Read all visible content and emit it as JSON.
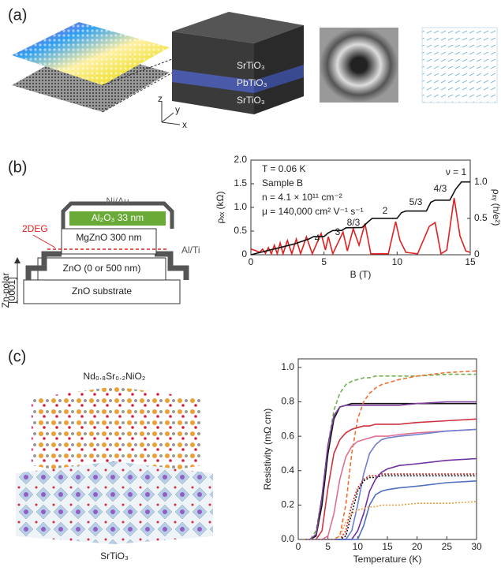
{
  "panels": {
    "a": {
      "label": "(a)",
      "layers": [
        "SrTiO₃",
        "PbTiO₃",
        "SrTiO₃"
      ],
      "axes": [
        "z",
        "y",
        "x"
      ]
    },
    "b": {
      "label": "(b)",
      "diagram": {
        "cap": "Ni/Au",
        "oxide": "Al₂O₃ 33 nm",
        "twodeg": "2DEG",
        "barrier": "MgZnO 300 nm",
        "contact": "Al/Ti",
        "buffer": "ZnO (0 or 500 nm)",
        "substrate": "ZnO substrate",
        "polarity": [
          "Zn-polar",
          "[0001]"
        ]
      }
    },
    "c": {
      "label": "(c)",
      "top": "Nd₀.₈Sr₀.₂NiO₂",
      "bottom": "SrTiO₃"
    }
  },
  "chart_data": [
    {
      "type": "line",
      "xlabel": "B (T)",
      "ylabel": "ρₓₓ (kΩ)",
      "y2label": "ρₓᵧ (h/e²)",
      "annotations": [
        "T = 0.06 K",
        "Sample B",
        "n = 4.1 × 10¹¹ cm⁻²",
        "μ = 140,000 cm² V⁻¹ s⁻¹"
      ],
      "plateaus": [
        "4",
        "3",
        "8/3",
        "2",
        "5/3",
        "4/3",
        "ν = 1"
      ],
      "xlim": [
        0,
        15
      ],
      "xticks": [
        0,
        5,
        10,
        15
      ],
      "ylim": [
        0,
        2
      ],
      "yticks": [
        0,
        0.5,
        {
          "value": 1,
          "label": "1.0"
        },
        1.5,
        {
          "value": 2,
          "label": "2.0"
        }
      ],
      "y2lim": [
        0,
        1.3
      ],
      "y2ticks": [
        0,
        0.5,
        {
          "value": 1,
          "label": "1.0"
        }
      ],
      "series": [
        {
          "color": "#e02020",
          "x": [
            0,
            0.3,
            0.6,
            0.8,
            1.0,
            1.2,
            1.4,
            1.6,
            1.8,
            2.0,
            2.2,
            2.5,
            2.8,
            3.1,
            3.4,
            3.8,
            4.2,
            4.8,
            5.1,
            5.3,
            5.6,
            6.3,
            6.6,
            7.0,
            7.4,
            7.8,
            8.2,
            9.4,
            9.9,
            10.2,
            10.6,
            11.4,
            12.2,
            12.6,
            13.0,
            13.4,
            13.9,
            14.3,
            14.7,
            15
          ],
          "values": [
            0.12,
            0.09,
            0.05,
            0.12,
            0.03,
            0.15,
            0.02,
            0.2,
            0.02,
            0.25,
            0.02,
            0.3,
            0.02,
            0.33,
            0.02,
            0.38,
            0.02,
            0.45,
            0.1,
            0.38,
            0.02,
            0.48,
            0.08,
            0.55,
            0.2,
            0.66,
            0.02,
            0.02,
            0.7,
            0.3,
            0.05,
            0.02,
            0.6,
            0.68,
            0.02,
            0.1,
            1.2,
            0.4,
            0.08,
            0.05
          ]
        },
        {
          "color": "#111111",
          "axis": "y2",
          "x": [
            0,
            1,
            2,
            3,
            4,
            4.3,
            5,
            5.3,
            5.6,
            6.2,
            6.5,
            7.6,
            8,
            8.3,
            10,
            10.3,
            10.6,
            12,
            12.3,
            12.6,
            13.6,
            14,
            14.4,
            15
          ],
          "values": [
            0,
            0.05,
            0.1,
            0.15,
            0.22,
            0.25,
            0.25,
            0.3,
            0.333,
            0.333,
            0.37,
            0.375,
            0.45,
            0.5,
            0.5,
            0.58,
            0.6,
            0.6,
            0.72,
            0.75,
            0.75,
            0.9,
            1.0,
            1.0
          ]
        }
      ]
    },
    {
      "type": "line",
      "xlabel": "Temperature (K)",
      "ylabel": "Resistivity (mΩ cm)",
      "xlim": [
        0,
        30
      ],
      "xticks": [
        0,
        5,
        10,
        15,
        20,
        25,
        30
      ],
      "ylim": [
        0,
        1.05
      ],
      "yticks": [
        {
          "value": 0,
          "label": "0.0"
        },
        0.2,
        0.4,
        0.6,
        0.8,
        {
          "value": 1,
          "label": "1.0"
        }
      ],
      "x": [
        1,
        2,
        3,
        4,
        5,
        6,
        7,
        8,
        9,
        10,
        11,
        12,
        13,
        14,
        15,
        17,
        20,
        25,
        30
      ],
      "series": [
        {
          "color": "#70b050",
          "dash": "dashed",
          "values": [
            0,
            0,
            0.05,
            0.25,
            0.55,
            0.75,
            0.85,
            0.9,
            0.92,
            0.93,
            0.94,
            0.94,
            0.95,
            0.95,
            0.95,
            0.95,
            0.95,
            0.96,
            0.96
          ]
        },
        {
          "color": "#111111",
          "dash": "solid",
          "values": [
            0,
            0,
            0.02,
            0.2,
            0.5,
            0.7,
            0.77,
            0.78,
            0.79,
            0.79,
            0.79,
            0.79,
            0.79,
            0.79,
            0.79,
            0.79,
            0.79,
            0.79,
            0.79
          ]
        },
        {
          "color": "#8040a0",
          "dash": "solid",
          "values": [
            0,
            0,
            0.03,
            0.25,
            0.55,
            0.72,
            0.77,
            0.78,
            0.78,
            0.78,
            0.78,
            0.78,
            0.78,
            0.78,
            0.78,
            0.78,
            0.79,
            0.8,
            0.8
          ]
        },
        {
          "color": "#f07030",
          "dash": "dashed",
          "values": [
            0,
            0,
            0,
            0,
            0,
            0,
            0.02,
            0.2,
            0.5,
            0.7,
            0.8,
            0.85,
            0.88,
            0.9,
            0.91,
            0.93,
            0.95,
            0.97,
            0.98
          ]
        },
        {
          "color": "#d03040",
          "dash": "solid",
          "values": [
            0,
            0,
            0,
            0.05,
            0.3,
            0.5,
            0.58,
            0.62,
            0.64,
            0.65,
            0.66,
            0.66,
            0.67,
            0.67,
            0.67,
            0.67,
            0.68,
            0.69,
            0.7
          ]
        },
        {
          "color": "#e07090",
          "dash": "solid",
          "values": [
            0,
            0,
            0,
            0,
            0.02,
            0.15,
            0.35,
            0.48,
            0.54,
            0.57,
            0.58,
            0.59,
            0.6,
            0.6,
            0.6,
            0.61,
            0.62,
            0.63,
            0.64
          ]
        },
        {
          "color": "#7080d0",
          "dash": "solid",
          "values": [
            0,
            0,
            0,
            0,
            0,
            0,
            0,
            0,
            0.05,
            0.2,
            0.38,
            0.5,
            0.55,
            0.58,
            0.59,
            0.6,
            0.61,
            0.63,
            0.64
          ]
        },
        {
          "color": "#d02020",
          "dash": "dotted",
          "values": [
            0,
            0,
            0,
            0,
            0,
            0,
            0,
            0.05,
            0.2,
            0.3,
            0.35,
            0.37,
            0.37,
            0.38,
            0.38,
            0.38,
            0.38,
            0.38,
            0.38
          ]
        },
        {
          "color": "#111111",
          "dash": "dotted",
          "values": [
            0,
            0,
            0,
            0,
            0,
            0,
            0,
            0.02,
            0.15,
            0.28,
            0.34,
            0.36,
            0.36,
            0.37,
            0.37,
            0.37,
            0.37,
            0.37,
            0.37
          ]
        },
        {
          "color": "#7030a0",
          "dash": "solid",
          "values": [
            0,
            0,
            0,
            0,
            0,
            0,
            0,
            0,
            0,
            0.05,
            0.15,
            0.28,
            0.35,
            0.39,
            0.41,
            0.43,
            0.44,
            0.46,
            0.47
          ]
        },
        {
          "color": "#5070c0",
          "dash": "solid",
          "values": [
            0,
            0,
            0,
            0,
            0,
            0,
            0,
            0,
            0,
            0,
            0.08,
            0.2,
            0.26,
            0.28,
            0.29,
            0.3,
            0.31,
            0.33,
            0.34
          ]
        },
        {
          "color": "#f0a040",
          "dash": "dotted",
          "values": [
            0,
            0,
            0,
            0,
            0,
            0,
            0.02,
            0.1,
            0.15,
            0.17,
            0.18,
            0.19,
            0.19,
            0.2,
            0.2,
            0.2,
            0.21,
            0.21,
            0.22
          ]
        }
      ]
    }
  ]
}
